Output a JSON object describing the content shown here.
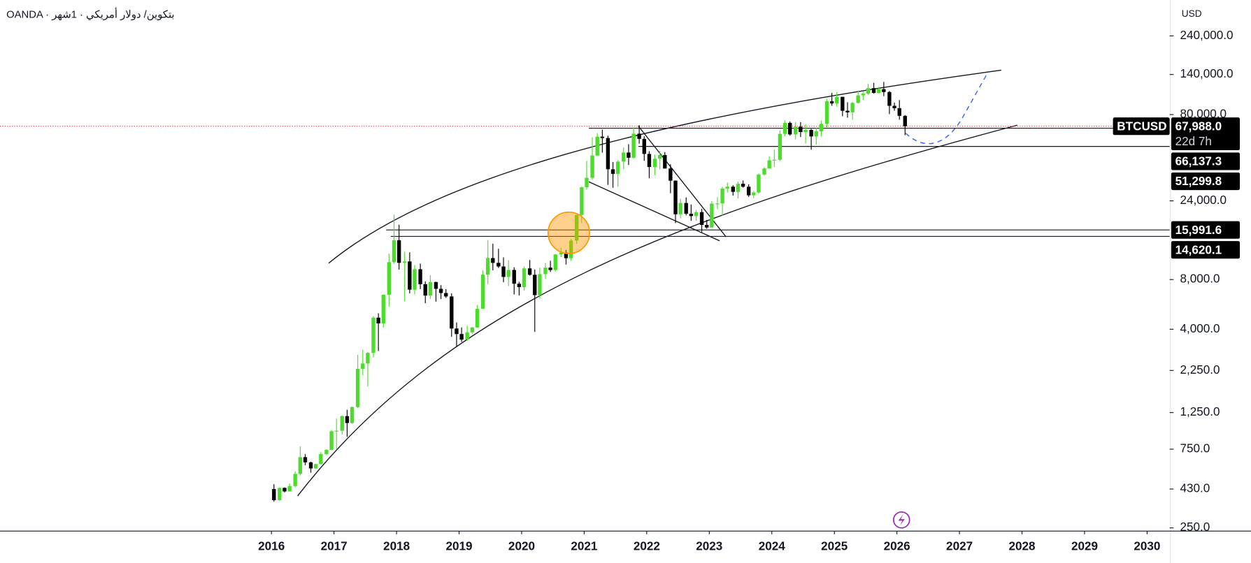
{
  "chart_data": {
    "type": "candlestick",
    "title": "OANDA · بتكوين/ دولار أمريكي · 1شهر",
    "currency": "USD",
    "log_scale": true,
    "series": [
      {
        "name": "BTCUSD",
        "up_color": "#4cdd2c",
        "down_color": "#000000",
        "x": [
          2016.04,
          2016.13,
          2016.21,
          2016.29,
          2016.38,
          2016.46,
          2016.54,
          2016.63,
          2016.71,
          2016.79,
          2016.88,
          2016.96,
          2017.04,
          2017.13,
          2017.21,
          2017.29,
          2017.38,
          2017.46,
          2017.54,
          2017.63,
          2017.71,
          2017.79,
          2017.88,
          2017.96,
          2018.04,
          2018.13,
          2018.21,
          2018.29,
          2018.38,
          2018.46,
          2018.54,
          2018.63,
          2018.71,
          2018.79,
          2018.88,
          2018.96,
          2019.04,
          2019.13,
          2019.21,
          2019.29,
          2019.38,
          2019.46,
          2019.54,
          2019.63,
          2019.71,
          2019.79,
          2019.88,
          2019.96,
          2020.04,
          2020.13,
          2020.21,
          2020.29,
          2020.38,
          2020.46,
          2020.54,
          2020.63,
          2020.71,
          2020.79,
          2020.88,
          2020.96,
          2021.04,
          2021.13,
          2021.21,
          2021.29,
          2021.38,
          2021.46,
          2021.54,
          2021.63,
          2021.71,
          2021.79,
          2021.88,
          2021.96,
          2022.04,
          2022.13,
          2022.21,
          2022.29,
          2022.38,
          2022.46,
          2022.54,
          2022.63,
          2022.71,
          2022.79,
          2022.88,
          2022.96,
          2023.04,
          2023.13,
          2023.21,
          2023.29,
          2023.38,
          2023.46,
          2023.54,
          2023.63,
          2023.71,
          2023.79,
          2023.88,
          2023.96,
          2024.04,
          2024.13,
          2024.21,
          2024.29,
          2024.38,
          2024.46,
          2024.54,
          2024.63,
          2024.71,
          2024.79,
          2024.88,
          2024.96,
          2025.04,
          2025.13,
          2025.21,
          2025.29,
          2025.38,
          2025.46,
          2025.54,
          2025.63,
          2025.71,
          2025.79,
          2025.88,
          2025.96,
          2026.04,
          2026.13
        ],
        "open": [
          430,
          368,
          437,
          416,
          448,
          531,
          671,
          624,
          573,
          609,
          700,
          742,
          963,
          970,
          1190,
          1080,
          1350,
          2300,
          2480,
          2875,
          4700,
          4340,
          6470,
          10200,
          13850,
          10100,
          10300,
          6950,
          9240,
          7500,
          6400,
          7730,
          7030,
          6630,
          6320,
          4040,
          3740,
          3460,
          3830,
          4100,
          5320,
          8570,
          10800,
          10100,
          9600,
          8300,
          9150,
          7550,
          7200,
          9350,
          8550,
          6440,
          8630,
          9450,
          9140,
          11350,
          11650,
          10780,
          13800,
          19700,
          28990,
          33100,
          45200,
          58800,
          57700,
          37300,
          35000,
          41500,
          47100,
          43800,
          61300,
          57000,
          46200,
          38500,
          43200,
          45500,
          37700,
          31800,
          19900,
          23300,
          20050,
          19400,
          20500,
          17150,
          16550,
          23100,
          23150,
          28480,
          29250,
          27200,
          30470,
          29230,
          25940,
          26970,
          34650,
          37720,
          42280,
          42580,
          61130,
          71280,
          60640,
          67490,
          62680,
          64620,
          58970,
          63330,
          70290,
          96450,
          93430,
          102400,
          84350,
          82550,
          94200,
          104600,
          107100,
          115800,
          108200,
          114050,
          109600,
          90400,
          87500,
          78600
        ],
        "high": [
          460,
          440,
          440,
          465,
          550,
          780,
          700,
          630,
          610,
          720,
          750,
          980,
          1150,
          1200,
          1300,
          1360,
          2800,
          3000,
          2920,
          4800,
          5000,
          6500,
          11500,
          19800,
          17200,
          11800,
          11700,
          9800,
          10000,
          7800,
          8500,
          7760,
          7400,
          7000,
          6600,
          4400,
          4100,
          4200,
          4130,
          5600,
          9100,
          13900,
          13200,
          12300,
          10900,
          10500,
          9500,
          7750,
          9600,
          10500,
          9200,
          9450,
          10080,
          10400,
          11450,
          12480,
          12100,
          14100,
          19900,
          29300,
          41950,
          58300,
          61800,
          64900,
          59600,
          41300,
          42300,
          50500,
          52900,
          67000,
          69000,
          59100,
          48000,
          45800,
          48200,
          47400,
          40000,
          31950,
          24650,
          25200,
          22800,
          21100,
          21450,
          18400,
          23950,
          25250,
          29200,
          31000,
          29850,
          31400,
          31850,
          30250,
          27500,
          35200,
          38450,
          44700,
          48950,
          64000,
          73800,
          72700,
          71950,
          72000,
          70000,
          65600,
          66500,
          73600,
          99600,
          108350,
          109600,
          102750,
          95000,
          95750,
          111900,
          110400,
          123200,
          124450,
          117900,
          126200,
          111200,
          94600,
          97900,
          79500
        ],
        "low": [
          360,
          365,
          410,
          414,
          440,
          520,
          600,
          540,
          570,
          605,
          690,
          740,
          750,
          920,
          890,
          1070,
          1330,
          2100,
          1800,
          2700,
          2950,
          4100,
          5500,
          10000,
          9200,
          5900,
          6600,
          6500,
          7000,
          5750,
          6100,
          5880,
          6100,
          6200,
          3600,
          3150,
          3350,
          3400,
          3730,
          4080,
          5300,
          7500,
          9100,
          9400,
          7700,
          7300,
          6500,
          6400,
          6850,
          8450,
          3850,
          6150,
          8100,
          8900,
          8950,
          10950,
          9870,
          10400,
          13200,
          17600,
          28100,
          32300,
          45000,
          47000,
          30000,
          28800,
          29300,
          37300,
          39600,
          43300,
          53300,
          42000,
          32900,
          34300,
          37200,
          37600,
          26700,
          17600,
          18800,
          19600,
          18150,
          18200,
          15500,
          16250,
          16500,
          21350,
          19550,
          26950,
          25850,
          24800,
          28850,
          25350,
          24900,
          26550,
          34100,
          37600,
          38550,
          41900,
          59100,
          59600,
          56550,
          58450,
          53550,
          49000,
          52600,
          58900,
          66800,
          90500,
          89300,
          78200,
          76600,
          74500,
          93400,
          98200,
          105100,
          107300,
          107300,
          103500,
          80600,
          84400,
          74500,
          60000
        ],
        "close": [
          368,
          437,
          416,
          448,
          531,
          671,
          624,
          573,
          609,
          700,
          742,
          963,
          970,
          1190,
          1080,
          1350,
          2300,
          2480,
          2875,
          4700,
          4340,
          6470,
          10200,
          13850,
          10100,
          10300,
          6950,
          9240,
          7500,
          6400,
          7730,
          7030,
          6630,
          6320,
          4040,
          3740,
          3460,
          3830,
          4100,
          5320,
          8570,
          10800,
          10100,
          9600,
          8300,
          9150,
          7550,
          7200,
          9350,
          8550,
          6440,
          8630,
          9450,
          9140,
          11350,
          11650,
          10780,
          13800,
          19700,
          28990,
          33100,
          45200,
          58800,
          57700,
          37300,
          35000,
          41500,
          47100,
          43800,
          61300,
          57000,
          46200,
          38500,
          43200,
          45500,
          37700,
          31800,
          19900,
          23300,
          20050,
          19400,
          20500,
          17150,
          16550,
          23100,
          23150,
          28480,
          29250,
          27200,
          30470,
          29230,
          25940,
          26970,
          34650,
          37720,
          42280,
          42580,
          61130,
          71280,
          60640,
          67490,
          62680,
          64620,
          58970,
          63330,
          70290,
          96450,
          93430,
          102400,
          84350,
          82550,
          94200,
          104600,
          107100,
          115800,
          108200,
          114050,
          109600,
          90400,
          87500,
          78600,
          67988
        ]
      }
    ],
    "last_price": {
      "name": "BTCUSD",
      "value": 67988,
      "label": "67,988.0",
      "countdown": "22d 7h",
      "color": "#d32f2f"
    },
    "price_lines": [
      {
        "value": 66137.3,
        "label": "66,137.3"
      },
      {
        "value": 51299.8,
        "label": "51,299.8"
      },
      {
        "value": 15991.6,
        "label": "15,991.6"
      },
      {
        "value": 14620.1,
        "label": "14,620.1"
      }
    ],
    "xlim": [
      2011.66,
      2030.36
    ],
    "xticks": [
      2016,
      2017,
      2018,
      2019,
      2020,
      2021,
      2022,
      2023,
      2024,
      2025,
      2026,
      2027,
      2028,
      2029,
      2030
    ],
    "ylim": [
      239,
      396000
    ],
    "yticks": [
      {
        "value": 240000,
        "label": "240,000.0"
      },
      {
        "value": 140000,
        "label": "140,000.0"
      },
      {
        "value": 80000,
        "label": "80,000.0"
      },
      {
        "value": 24000,
        "label": "24,000.0"
      },
      {
        "value": 8000,
        "label": "8,000.0"
      },
      {
        "value": 4000,
        "label": "4,000.0"
      },
      {
        "value": 2250,
        "label": "2,250.0"
      },
      {
        "value": 1250,
        "label": "1,250.0"
      },
      {
        "value": 750,
        "label": "750.0"
      },
      {
        "value": 430,
        "label": "430.0"
      },
      {
        "value": 250,
        "label": "250.0"
      }
    ]
  }
}
